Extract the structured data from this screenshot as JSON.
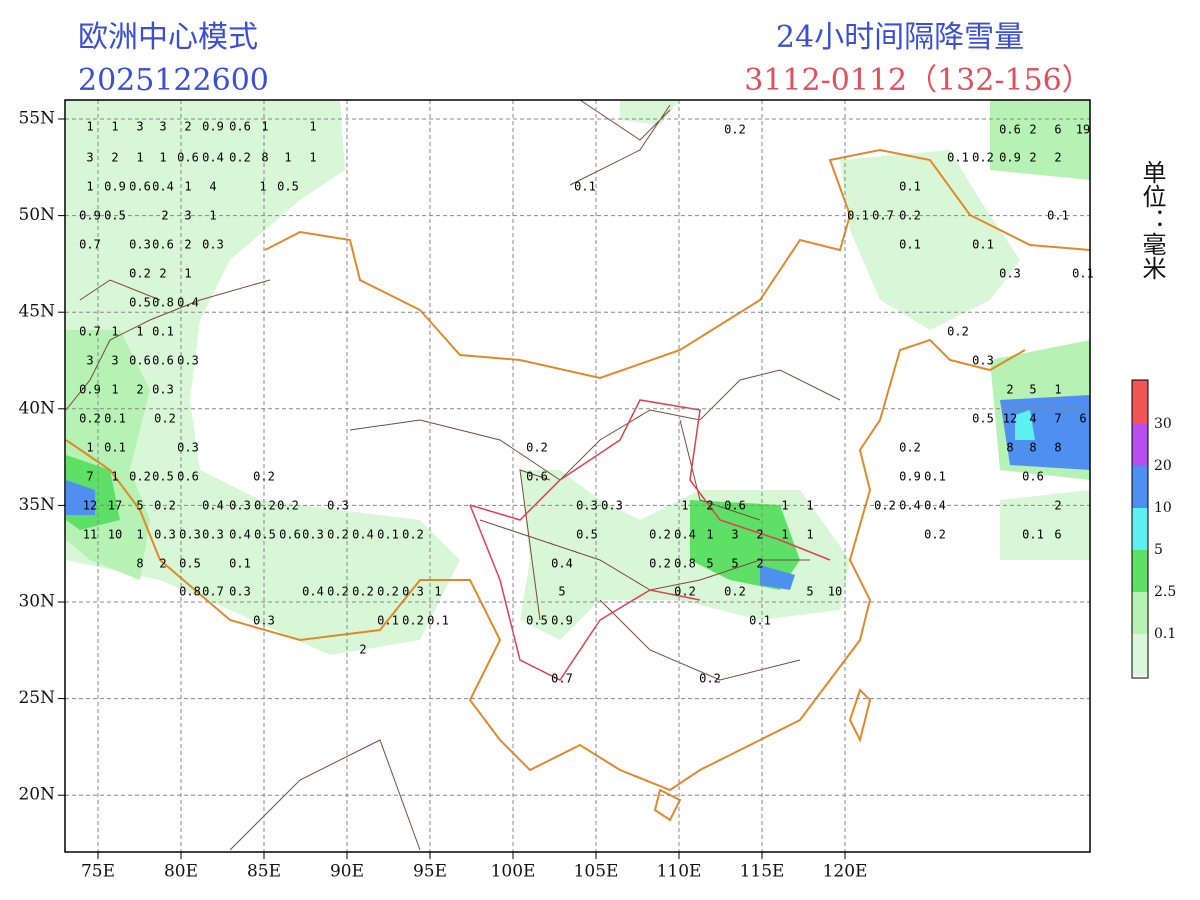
{
  "header": {
    "model": "欧洲中心模式",
    "init_time": "2025122600",
    "title": "24小时间隔降雪量",
    "period": "3112-0112（132-156）",
    "unit": "单位：毫米"
  },
  "axes": {
    "lat_labels": [
      "55N",
      "50N",
      "45N",
      "40N",
      "35N",
      "30N",
      "25N",
      "20N"
    ],
    "lon_labels": [
      "75E",
      "80E",
      "85E",
      "90E",
      "95E",
      "100E",
      "105E",
      "110E",
      "115E",
      "120E"
    ]
  },
  "legend": {
    "labels": [
      "30",
      "20",
      "10",
      "5",
      "2.5",
      "0.1"
    ],
    "colors": [
      "#f25555",
      "#b84df0",
      "#4f8ff0",
      "#5df0f0",
      "#5ee066",
      "#b6f2b4",
      "#dcf8da",
      "#ffffff"
    ]
  },
  "map_labels": [
    [
      "1",
      "1",
      "3",
      "3",
      "2",
      "0.9",
      "0.6",
      "1",
      "1"
    ],
    [
      "3",
      "2",
      "1",
      "1",
      "0.6",
      "0.4",
      "0.2",
      "8",
      "1",
      "1"
    ],
    [
      "1",
      "0.9",
      "0.6",
      "0.4",
      "1",
      "4",
      "1",
      "0.5"
    ],
    [
      "0.9",
      "0.5",
      "2",
      "3",
      "1"
    ],
    [
      "0.7",
      "0.3",
      "0.6",
      "2",
      "0.3"
    ],
    [
      "0.2",
      "2",
      "1"
    ],
    [
      "0.5",
      "0.8",
      "0.4"
    ],
    [
      "0.7",
      "1",
      "1",
      "0.1"
    ],
    [
      "3",
      "3",
      "0.6",
      "0.6",
      "0.3"
    ],
    [
      "0.9",
      "1",
      "2",
      "0.3"
    ],
    [
      "0.2",
      "0.1",
      "0.2"
    ],
    [
      "1",
      "0.1",
      "0.3"
    ],
    [
      "7",
      "1",
      "0.2",
      "0.5",
      "0.6",
      "0.2"
    ],
    [
      "12",
      "17",
      "5",
      "0.2",
      "0.4",
      "0.3",
      "0.2",
      "0.2",
      "0.3"
    ],
    [
      "11",
      "10",
      "1",
      "0.3",
      "0.3",
      "0.3",
      "0.4",
      "0.5",
      "0.6",
      "0.3",
      "0.2",
      "0.4",
      "0.1",
      "0.2"
    ],
    [
      "8",
      "2",
      "0.5",
      "0.1"
    ],
    [
      "0.8",
      "0.7",
      "0.3",
      "0.4",
      "0.2",
      "0.2",
      "0.2",
      "0.3",
      "1"
    ],
    [
      "0.3",
      "0.1",
      "0.2",
      "0.1"
    ],
    [
      "2"
    ],
    [
      "0.2",
      "0.6",
      "0.3",
      "0.3",
      "0.5",
      "0.4",
      "5",
      "0.5",
      "0.9",
      "0.7"
    ],
    [
      "1",
      "2",
      "0.6",
      "1",
      "1",
      "0.2",
      "0.4",
      "1",
      "3",
      "2",
      "1",
      "1"
    ],
    [
      "0.2",
      "0.8",
      "5",
      "5",
      "2",
      "0.2",
      "0.2",
      "5",
      "10",
      "0.1",
      "0.2",
      "0.1",
      "0.2"
    ],
    [
      "0.6",
      "2",
      "6",
      "19",
      "0.1",
      "0.2",
      "0.9",
      "2",
      "2",
      "0.1",
      "0.1",
      "0.7",
      "0.2",
      "0.1",
      "0.1",
      "0.1",
      "0.3",
      "0.1"
    ],
    [
      "0.2",
      "0.3",
      "2",
      "5",
      "1",
      "0.5",
      "12",
      "4",
      "7",
      "6",
      "8",
      "8",
      "8"
    ],
    [
      "0.2",
      "0.9",
      "0.1",
      "0.6",
      "0.2",
      "0.4",
      "0.4",
      "2",
      "0.2",
      "0.1",
      "6"
    ]
  ]
}
